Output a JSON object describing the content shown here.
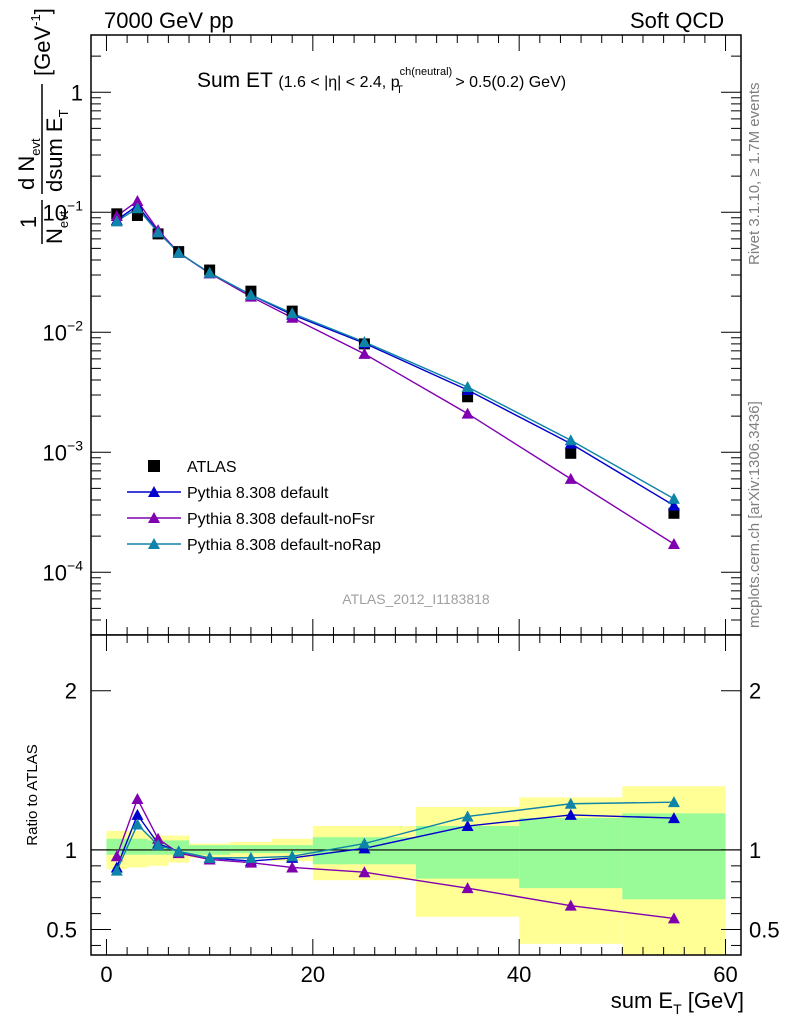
{
  "header": {
    "left": "7000 GeV pp",
    "right": "Soft QCD"
  },
  "side_labels": {
    "rivet": "Rivet 3.1.10, ≥ 1.7M events",
    "mcplots": "mcplots.cern.ch [arXiv:1306.3436]"
  },
  "chart_data": [
    {
      "type": "line",
      "panel": "main",
      "title": "Sum ET",
      "title_note_parts": [
        "(1.6 < |η| < 2.4, p",
        "ch(neutral)",
        "T",
        " > 0.5(0.2) GeV)"
      ],
      "ylabel_parts": {
        "frac_num": "1",
        "frac_den": "N",
        "frac_den_sub": "evt",
        "deriv_num": "d N",
        "deriv_num_sub": "evt",
        "deriv_den": "dsum E",
        "deriv_den_sub": "T",
        "unit": "[GeV",
        "unit_sup": "-1",
        "unit_close": "]"
      },
      "yscale": "log",
      "ylim": [
        3e-05,
        3
      ],
      "xlim": [
        -1.5,
        61.5
      ],
      "ytick_labels": [
        {
          "value": 1,
          "base": "1",
          "exp": ""
        },
        {
          "value": 0.1,
          "base": "10",
          "exp": "−1"
        },
        {
          "value": 0.01,
          "base": "10",
          "exp": "−2"
        },
        {
          "value": 0.001,
          "base": "10",
          "exp": "−3"
        },
        {
          "value": 0.0001,
          "base": "10",
          "exp": "−4"
        }
      ],
      "watermark": "ATLAS_2012_I1183818",
      "legend_position": "lower-left",
      "x": [
        1,
        3,
        5,
        7,
        10,
        14,
        18,
        25,
        35,
        45,
        55
      ],
      "series": [
        {
          "name": "ATLAS",
          "color": "#000000",
          "marker": "square",
          "line": false,
          "values": [
            0.097,
            0.094,
            0.066,
            0.047,
            0.033,
            0.022,
            0.015,
            0.008,
            0.0029,
            0.00098,
            0.00031
          ]
        },
        {
          "name": "Pythia 8.308 default",
          "color": "#0000cc",
          "marker": "triangle",
          "line": true,
          "values": [
            0.086,
            0.114,
            0.069,
            0.046,
            0.031,
            0.0205,
            0.014,
            0.0081,
            0.0033,
            0.00118,
            0.00036
          ]
        },
        {
          "name": "Pythia 8.308 default-noFsr",
          "color": "#8000b0",
          "marker": "triangle",
          "line": true,
          "values": [
            0.093,
            0.124,
            0.071,
            0.046,
            0.031,
            0.0198,
            0.0132,
            0.0066,
            0.0021,
            0.0006,
            0.000172
          ]
        },
        {
          "name": "Pythia 8.308 default-noRap",
          "color": "#0e84a8",
          "marker": "triangle",
          "line": true,
          "values": [
            0.084,
            0.108,
            0.068,
            0.046,
            0.0313,
            0.0205,
            0.0144,
            0.0083,
            0.0035,
            0.00126,
            0.00041
          ]
        }
      ]
    },
    {
      "type": "line",
      "panel": "ratio",
      "ylabel": "Ratio to ATLAS",
      "xlabel_parts": {
        "base": "sum E",
        "sub": "T",
        "unit": " [GeV]"
      },
      "ylim": [
        0.34,
        2.35
      ],
      "xlim": [
        -1.5,
        61.5
      ],
      "xticks": [
        0,
        20,
        40,
        60
      ],
      "yticks": [
        2,
        1,
        0.5
      ],
      "bands": [
        {
          "x0": 0,
          "x1": 2,
          "stat_lo": 0.97,
          "stat_hi": 1.07,
          "total_lo": 0.88,
          "total_hi": 1.12
        },
        {
          "x0": 2,
          "x1": 4,
          "stat_lo": 0.97,
          "stat_hi": 1.07,
          "total_lo": 0.89,
          "total_hi": 1.12
        },
        {
          "x0": 4,
          "x1": 6,
          "stat_lo": 0.97,
          "stat_hi": 1.06,
          "total_lo": 0.9,
          "total_hi": 1.09
        },
        {
          "x0": 6,
          "x1": 8,
          "stat_lo": 0.97,
          "stat_hi": 1.06,
          "total_lo": 0.92,
          "total_hi": 1.09
        },
        {
          "x0": 8,
          "x1": 12,
          "stat_lo": 0.97,
          "stat_hi": 1.03,
          "total_lo": 0.95,
          "total_hi": 1.04
        },
        {
          "x0": 12,
          "x1": 16,
          "stat_lo": 0.98,
          "stat_hi": 1.03,
          "total_lo": 0.95,
          "total_hi": 1.05
        },
        {
          "x0": 16,
          "x1": 20,
          "stat_lo": 0.98,
          "stat_hi": 1.03,
          "total_lo": 0.93,
          "total_hi": 1.07
        },
        {
          "x0": 20,
          "x1": 30,
          "stat_lo": 0.91,
          "stat_hi": 1.08,
          "total_lo": 0.81,
          "total_hi": 1.15
        },
        {
          "x0": 30,
          "x1": 40,
          "stat_lo": 0.82,
          "stat_hi": 1.15,
          "total_lo": 0.58,
          "total_hi": 1.27
        },
        {
          "x0": 40,
          "x1": 50,
          "stat_lo": 0.76,
          "stat_hi": 1.2,
          "total_lo": 0.41,
          "total_hi": 1.33
        },
        {
          "x0": 50,
          "x1": 60,
          "stat_lo": 0.69,
          "stat_hi": 1.23,
          "total_lo": 0.34,
          "total_hi": 1.4
        }
      ],
      "band_colors": {
        "stat": "#98fb98",
        "total": "#ffff96"
      },
      "x": [
        1,
        3,
        5,
        7,
        10,
        14,
        18,
        25,
        35,
        45,
        55
      ],
      "series": [
        {
          "name": "Pythia 8.308 default",
          "color": "#0000cc",
          "values": [
            0.89,
            1.22,
            1.04,
            0.99,
            0.95,
            0.93,
            0.95,
            1.01,
            1.15,
            1.22,
            1.2
          ]
        },
        {
          "name": "Pythia 8.308 default-noFsr",
          "color": "#8000b0",
          "values": [
            0.96,
            1.32,
            1.07,
            0.98,
            0.94,
            0.92,
            0.89,
            0.86,
            0.76,
            0.65,
            0.57
          ]
        },
        {
          "name": "Pythia 8.308 default-noRap",
          "color": "#0e84a8",
          "values": [
            0.87,
            1.16,
            1.03,
            0.99,
            0.95,
            0.95,
            0.96,
            1.04,
            1.21,
            1.29,
            1.3
          ]
        }
      ]
    }
  ]
}
